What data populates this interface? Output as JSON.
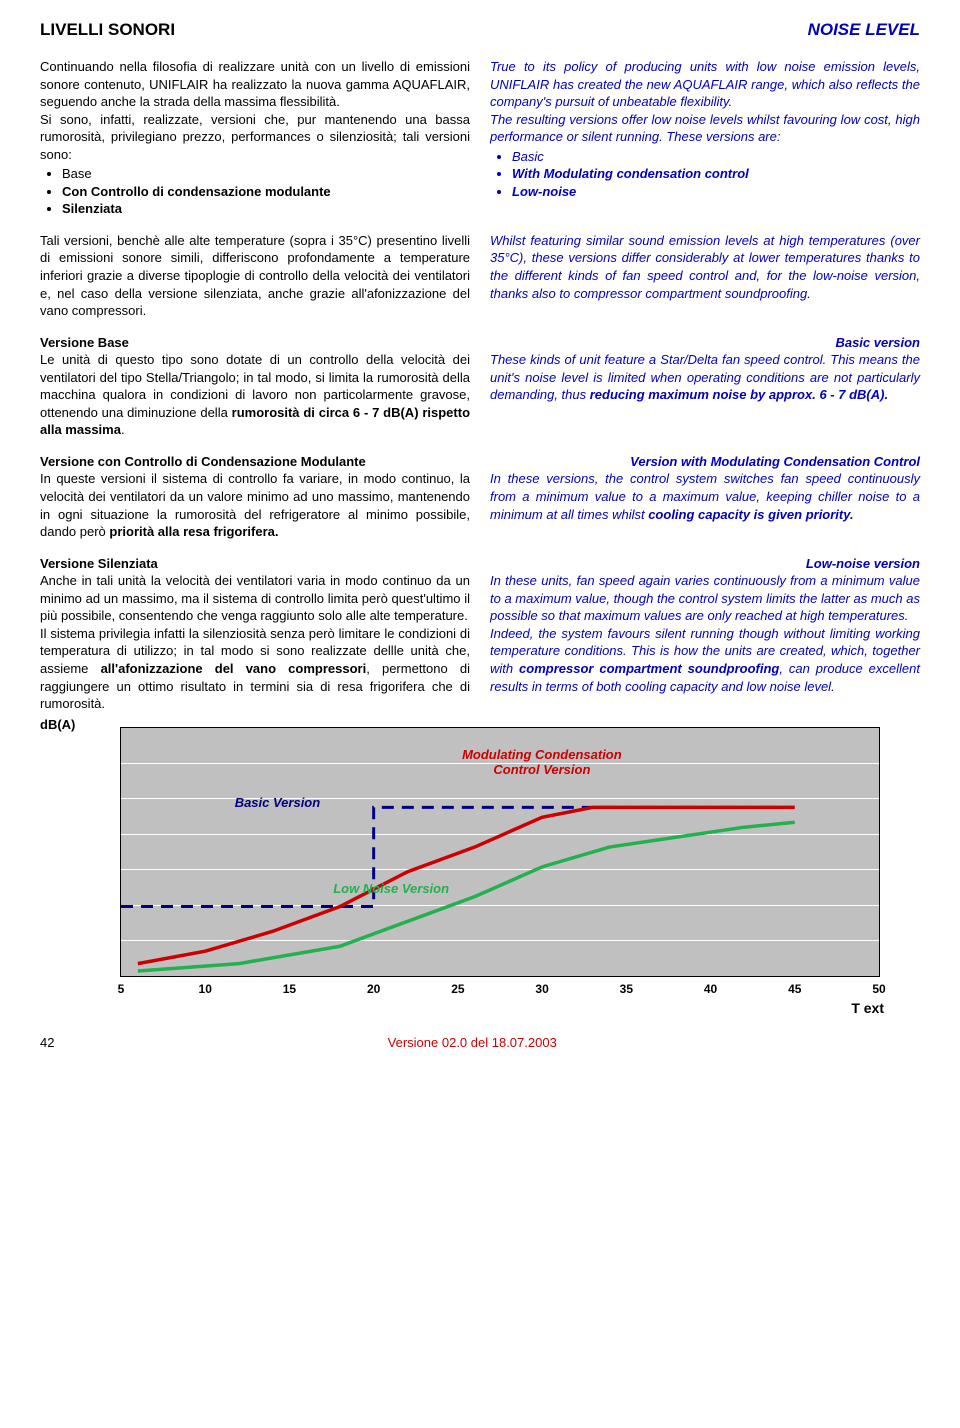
{
  "header": {
    "title_it": "LIVELLI SONORI",
    "title_en": "NOISE LEVEL"
  },
  "p1_it": "Continuando nella filosofia di realizzare unità con un livello di emissioni sonore contenuto, UNIFLAIR ha realizzato la nuova gamma AQUAFLAIR, seguendo anche la strada della massima flessibilità.",
  "p1b_it": "Si sono, infatti, realizzate, versioni che, pur mantenendo una bassa rumorosità, privilegiano prezzo, performances o silenziosità; tali versioni sono:",
  "bul_it": [
    "Base",
    "Con Controllo di condensazione modulante",
    "Silenziata"
  ],
  "p1_en": "True to its policy of producing units with low noise emission levels, UNIFLAIR has created the new AQUAFLAIR range, which also reflects the company's pursuit of unbeatable flexibility.",
  "p1b_en": "The resulting versions offer low noise levels whilst favouring low cost, high performance or silent running. These versions are:",
  "bul_en": [
    "Basic",
    "With Modulating condensation control",
    "Low-noise"
  ],
  "p2_it": "Tali versioni, benchè alle alte temperature (sopra i 35°C) presentino livelli di emissioni sonore simili, differiscono profondamente a temperature inferiori grazie a diverse tipoplogie di controllo della velocità dei ventilatori e, nel caso della versione silenziata, anche grazie all'afonizzazione del vano compressori.",
  "p2_en": "Whilst featuring similar sound emission levels at high temperatures (over 35°C), these versions differ considerably at lower temperatures thanks to the different kinds of fan speed control and, for the low-noise version, thanks also to compressor compartment soundproofing.",
  "h3_it": "Versione Base",
  "p3_it_a": "Le unità di questo tipo sono dotate di un controllo della velocità dei ventilatori del tipo Stella/Triangolo; in tal modo, si limita la rumorosità della macchina qualora in condizioni di lavoro non particolarmente gravose, ottenendo una diminuzione della ",
  "p3_it_b": "rumorosità di circa 6 - 7 dB(A) rispetto alla massima",
  "h3_en": "Basic version",
  "p3_en_a": "These kinds of unit feature a Star/Delta fan speed control. This means the unit's noise level is limited when operating conditions are not particularly demanding, thus ",
  "p3_en_b": "reducing maximum noise by approx. 6 - 7 dB(A).",
  "h4_it": "Versione con Controllo di Condensazione Modulante",
  "p4_it_a": "In queste versioni il sistema di controllo fa variare, in modo continuo, la velocità dei ventilatori da un valore minimo ad uno massimo, mantenendo in ogni situazione la rumorosità del refrigeratore al minimo possibile, dando però ",
  "p4_it_b": "priorità alla resa frigorifera.",
  "h4_en": "Version with Modulating Condensation Control",
  "p4_en_a": "In these versions, the control system switches fan speed continuously from a minimum value to a maximum value, keeping chiller noise to a minimum at all times whilst ",
  "p4_en_b": "cooling capacity is given priority.",
  "h5_it": "Versione Silenziata",
  "p5_it": "Anche in tali unità la velocità dei ventilatori varia in modo continuo da un minimo ad un massimo, ma il sistema di controllo limita però quest'ultimo il più possibile, consentendo che venga raggiunto solo alle alte temperature.",
  "p5b_it_a": "Il sistema privilegia infatti la silenziosità senza però limitare le condizioni di temperatura di utilizzo; in tal modo si sono realizzate dellle unità che, assieme ",
  "p5b_it_b": "all'afonizzazione del vano compressori",
  "p5b_it_c": ", permettono di raggiungere un ottimo risultato in termini sia di resa frigorifera che di rumorosità.",
  "h5_en": "Low-noise version",
  "p5_en": "In these units, fan speed again varies continuously from a minimum value to a maximum value, though the control system limits the latter as much as possible so that maximum values are only reached at high temperatures.",
  "p5b_en_a": "Indeed, the system favours silent running though without limiting working temperature conditions. This is how the units are created, which, together with ",
  "p5b_en_b": "compressor compartment soundproofing",
  "p5b_en_c": ", can produce excellent results in terms of both cooling capacity and low noise level.",
  "chart": {
    "y_label": "dB(A)",
    "x_label": "T ext",
    "x_ticks": [
      5,
      10,
      15,
      20,
      25,
      30,
      35,
      40,
      45,
      50
    ],
    "x_min": 5,
    "x_max": 50,
    "grid_rows": 7,
    "bg": "#c0c0c0",
    "labels": {
      "mod": "Modulating Condensation\nControl Version",
      "basic": "Basic Version",
      "low": "Low Noise Version"
    },
    "colors": {
      "mod": "#cc0000",
      "basic": "#000080",
      "low": "#22b14c"
    },
    "series": {
      "basic": [
        [
          5,
          72
        ],
        [
          20,
          72
        ],
        [
          20,
          32
        ],
        [
          45,
          32
        ]
      ],
      "mod": [
        [
          6,
          95
        ],
        [
          10,
          90
        ],
        [
          14,
          82
        ],
        [
          18,
          72
        ],
        [
          22,
          58
        ],
        [
          26,
          48
        ],
        [
          30,
          36
        ],
        [
          33,
          32
        ],
        [
          45,
          32
        ]
      ],
      "low": [
        [
          6,
          98
        ],
        [
          12,
          95
        ],
        [
          18,
          88
        ],
        [
          22,
          78
        ],
        [
          26,
          68
        ],
        [
          30,
          56
        ],
        [
          34,
          48
        ],
        [
          38,
          44
        ],
        [
          42,
          40
        ],
        [
          45,
          38
        ]
      ]
    }
  },
  "footer": {
    "page": "42",
    "version": "Versione 02.0 del 18.07.2003"
  }
}
